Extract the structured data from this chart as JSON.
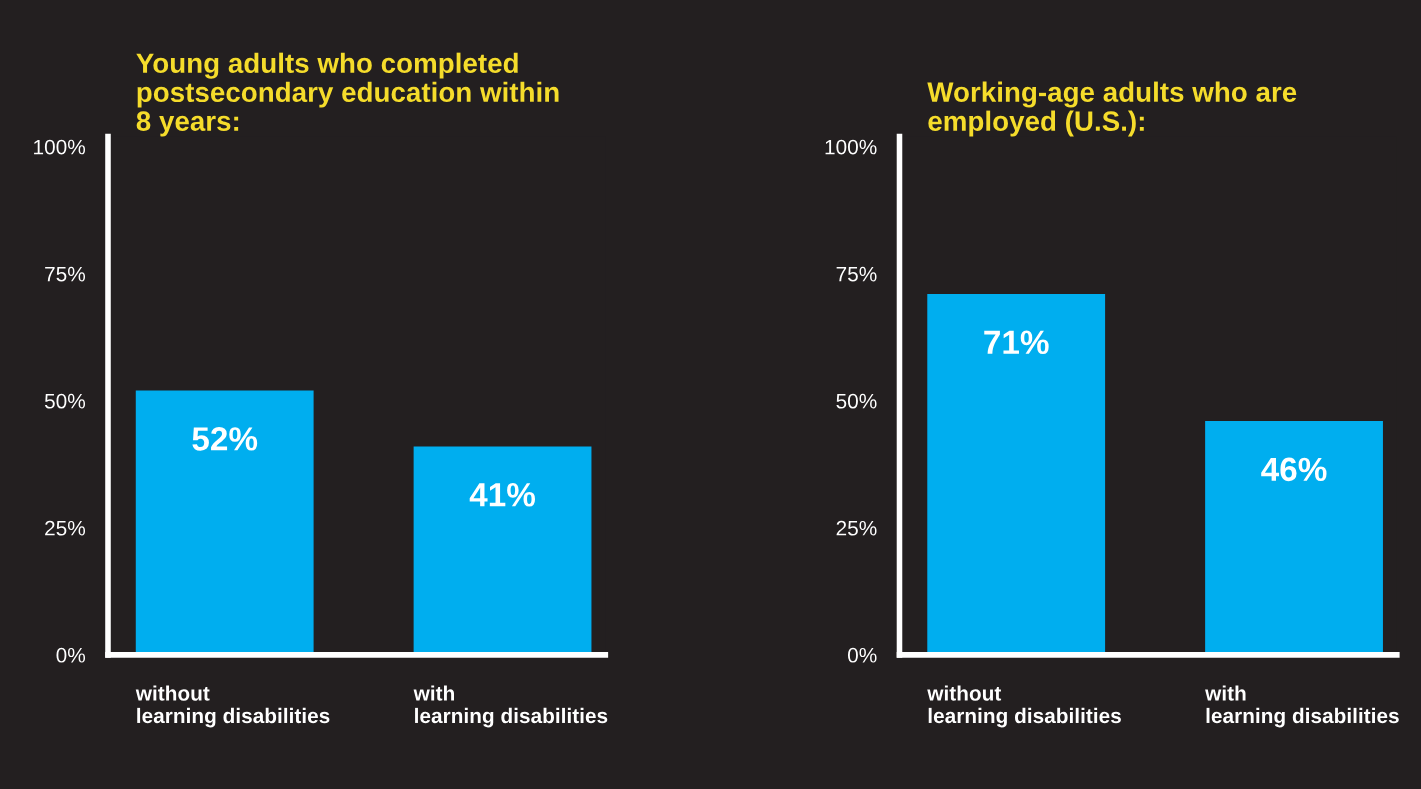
{
  "chart_data": [
    {
      "type": "bar",
      "title": "Young adults who completed\npostsecondary education within\n8 years:",
      "categories": [
        "without\nlearning disabilities",
        "with\nlearning disabilities"
      ],
      "values": [
        52,
        41
      ],
      "color": "#00aeef",
      "ylim": [
        0,
        102
      ],
      "yticks": [
        {
          "value": 0,
          "label": "0%"
        },
        {
          "value": 25,
          "label": "25%"
        },
        {
          "value": 50,
          "label": "50%"
        },
        {
          "value": 75,
          "label": "75%"
        },
        {
          "value": 100,
          "label": "100%"
        }
      ],
      "value_labels": [
        "52%",
        "41%"
      ],
      "grid": false,
      "legend": false
    },
    {
      "type": "bar",
      "title": "Working-age adults who are\nemployed (U.S.):",
      "categories": [
        "without\nlearning disabilities",
        "with\nlearning disabilities"
      ],
      "values": [
        71,
        46
      ],
      "color": "#00aeef",
      "ylim": [
        0,
        102
      ],
      "yticks": [
        {
          "value": 0,
          "label": "0%"
        },
        {
          "value": 25,
          "label": "25%"
        },
        {
          "value": 50,
          "label": "50%"
        },
        {
          "value": 75,
          "label": "75%"
        },
        {
          "value": 100,
          "label": "100%"
        }
      ],
      "value_labels": [
        "71%",
        "46%"
      ],
      "grid": false,
      "legend": false
    }
  ]
}
